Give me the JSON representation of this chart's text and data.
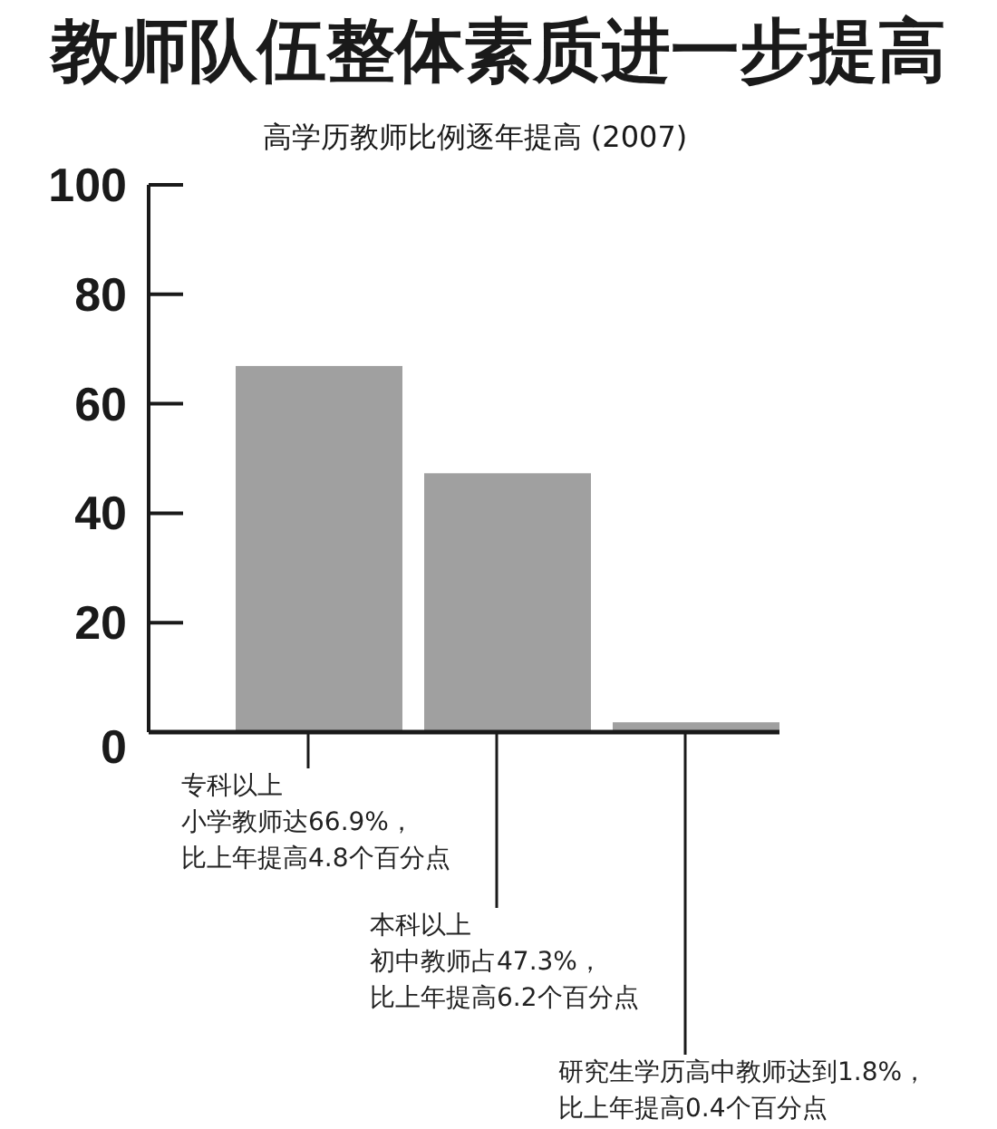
{
  "chart_data": {
    "type": "bar",
    "title": "教师队伍整体素质进一步提高",
    "subtitle": "高学历教师比例逐年提高 (2007)",
    "categories": [
      null,
      null,
      null
    ],
    "values": [
      66.9,
      47.3,
      1.8
    ],
    "color": "#a0a0a0",
    "ylim": [
      0,
      100
    ],
    "yticks": [
      0,
      20,
      40,
      60,
      80,
      100
    ],
    "annotations": [
      "专科以上小学教师达66.9%，比上年提高4.8个百分点",
      "本科以上初中教师占47.3%，比上年提高6.2个百分点",
      "研究生学历高中教师达到1.8%，比上年提高0.4个百分点"
    ]
  }
}
